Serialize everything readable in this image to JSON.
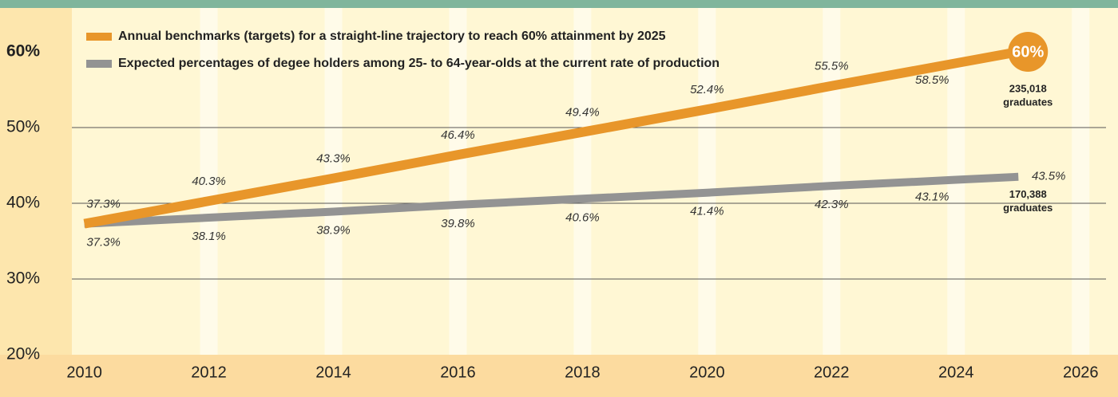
{
  "chart_data": {
    "type": "line",
    "x": [
      2010,
      2012,
      2014,
      2016,
      2018,
      2020,
      2022,
      2024,
      2025
    ],
    "series": [
      {
        "name": "Annual benchmarks (targets) for a straight-line trajectory to reach 60% attainment by 2025",
        "color": "#e8962a",
        "values": [
          37.3,
          40.3,
          43.3,
          46.4,
          49.4,
          52.4,
          55.5,
          58.5,
          60
        ],
        "value_labels": [
          "37.3%",
          "40.3%",
          "43.3%",
          "46.4%",
          "49.4%",
          "52.4%",
          "55.5%",
          "58.5%",
          "60%"
        ]
      },
      {
        "name": "Expected percentages of degee holders among 25- to 64-year-olds at the current rate of production",
        "color": "#939393",
        "values": [
          37.3,
          38.1,
          38.9,
          39.8,
          40.6,
          41.4,
          42.3,
          43.1,
          43.5
        ],
        "value_labels": [
          "37.3%",
          "38.1%",
          "38.9%",
          "39.8%",
          "40.6%",
          "41.4%",
          "42.3%",
          "43.1%",
          "43.5%"
        ]
      }
    ],
    "annotations": [
      {
        "number": "235,018",
        "text": "graduates"
      },
      {
        "number": "170,388",
        "text": "graduates"
      }
    ],
    "xlim": [
      2009.8,
      2026.6
    ],
    "xticks": [
      2010,
      2012,
      2014,
      2016,
      2018,
      2020,
      2022,
      2024,
      2026
    ],
    "ylim": [
      20,
      65
    ],
    "yticks": [
      {
        "value": 20,
        "label": "20%"
      },
      {
        "value": 30,
        "label": "30%"
      },
      {
        "value": 40,
        "label": "40%"
      },
      {
        "value": 50,
        "label": "50%"
      },
      {
        "value": 60,
        "label": "60%"
      }
    ],
    "grid": true,
    "legend": "top-left"
  }
}
